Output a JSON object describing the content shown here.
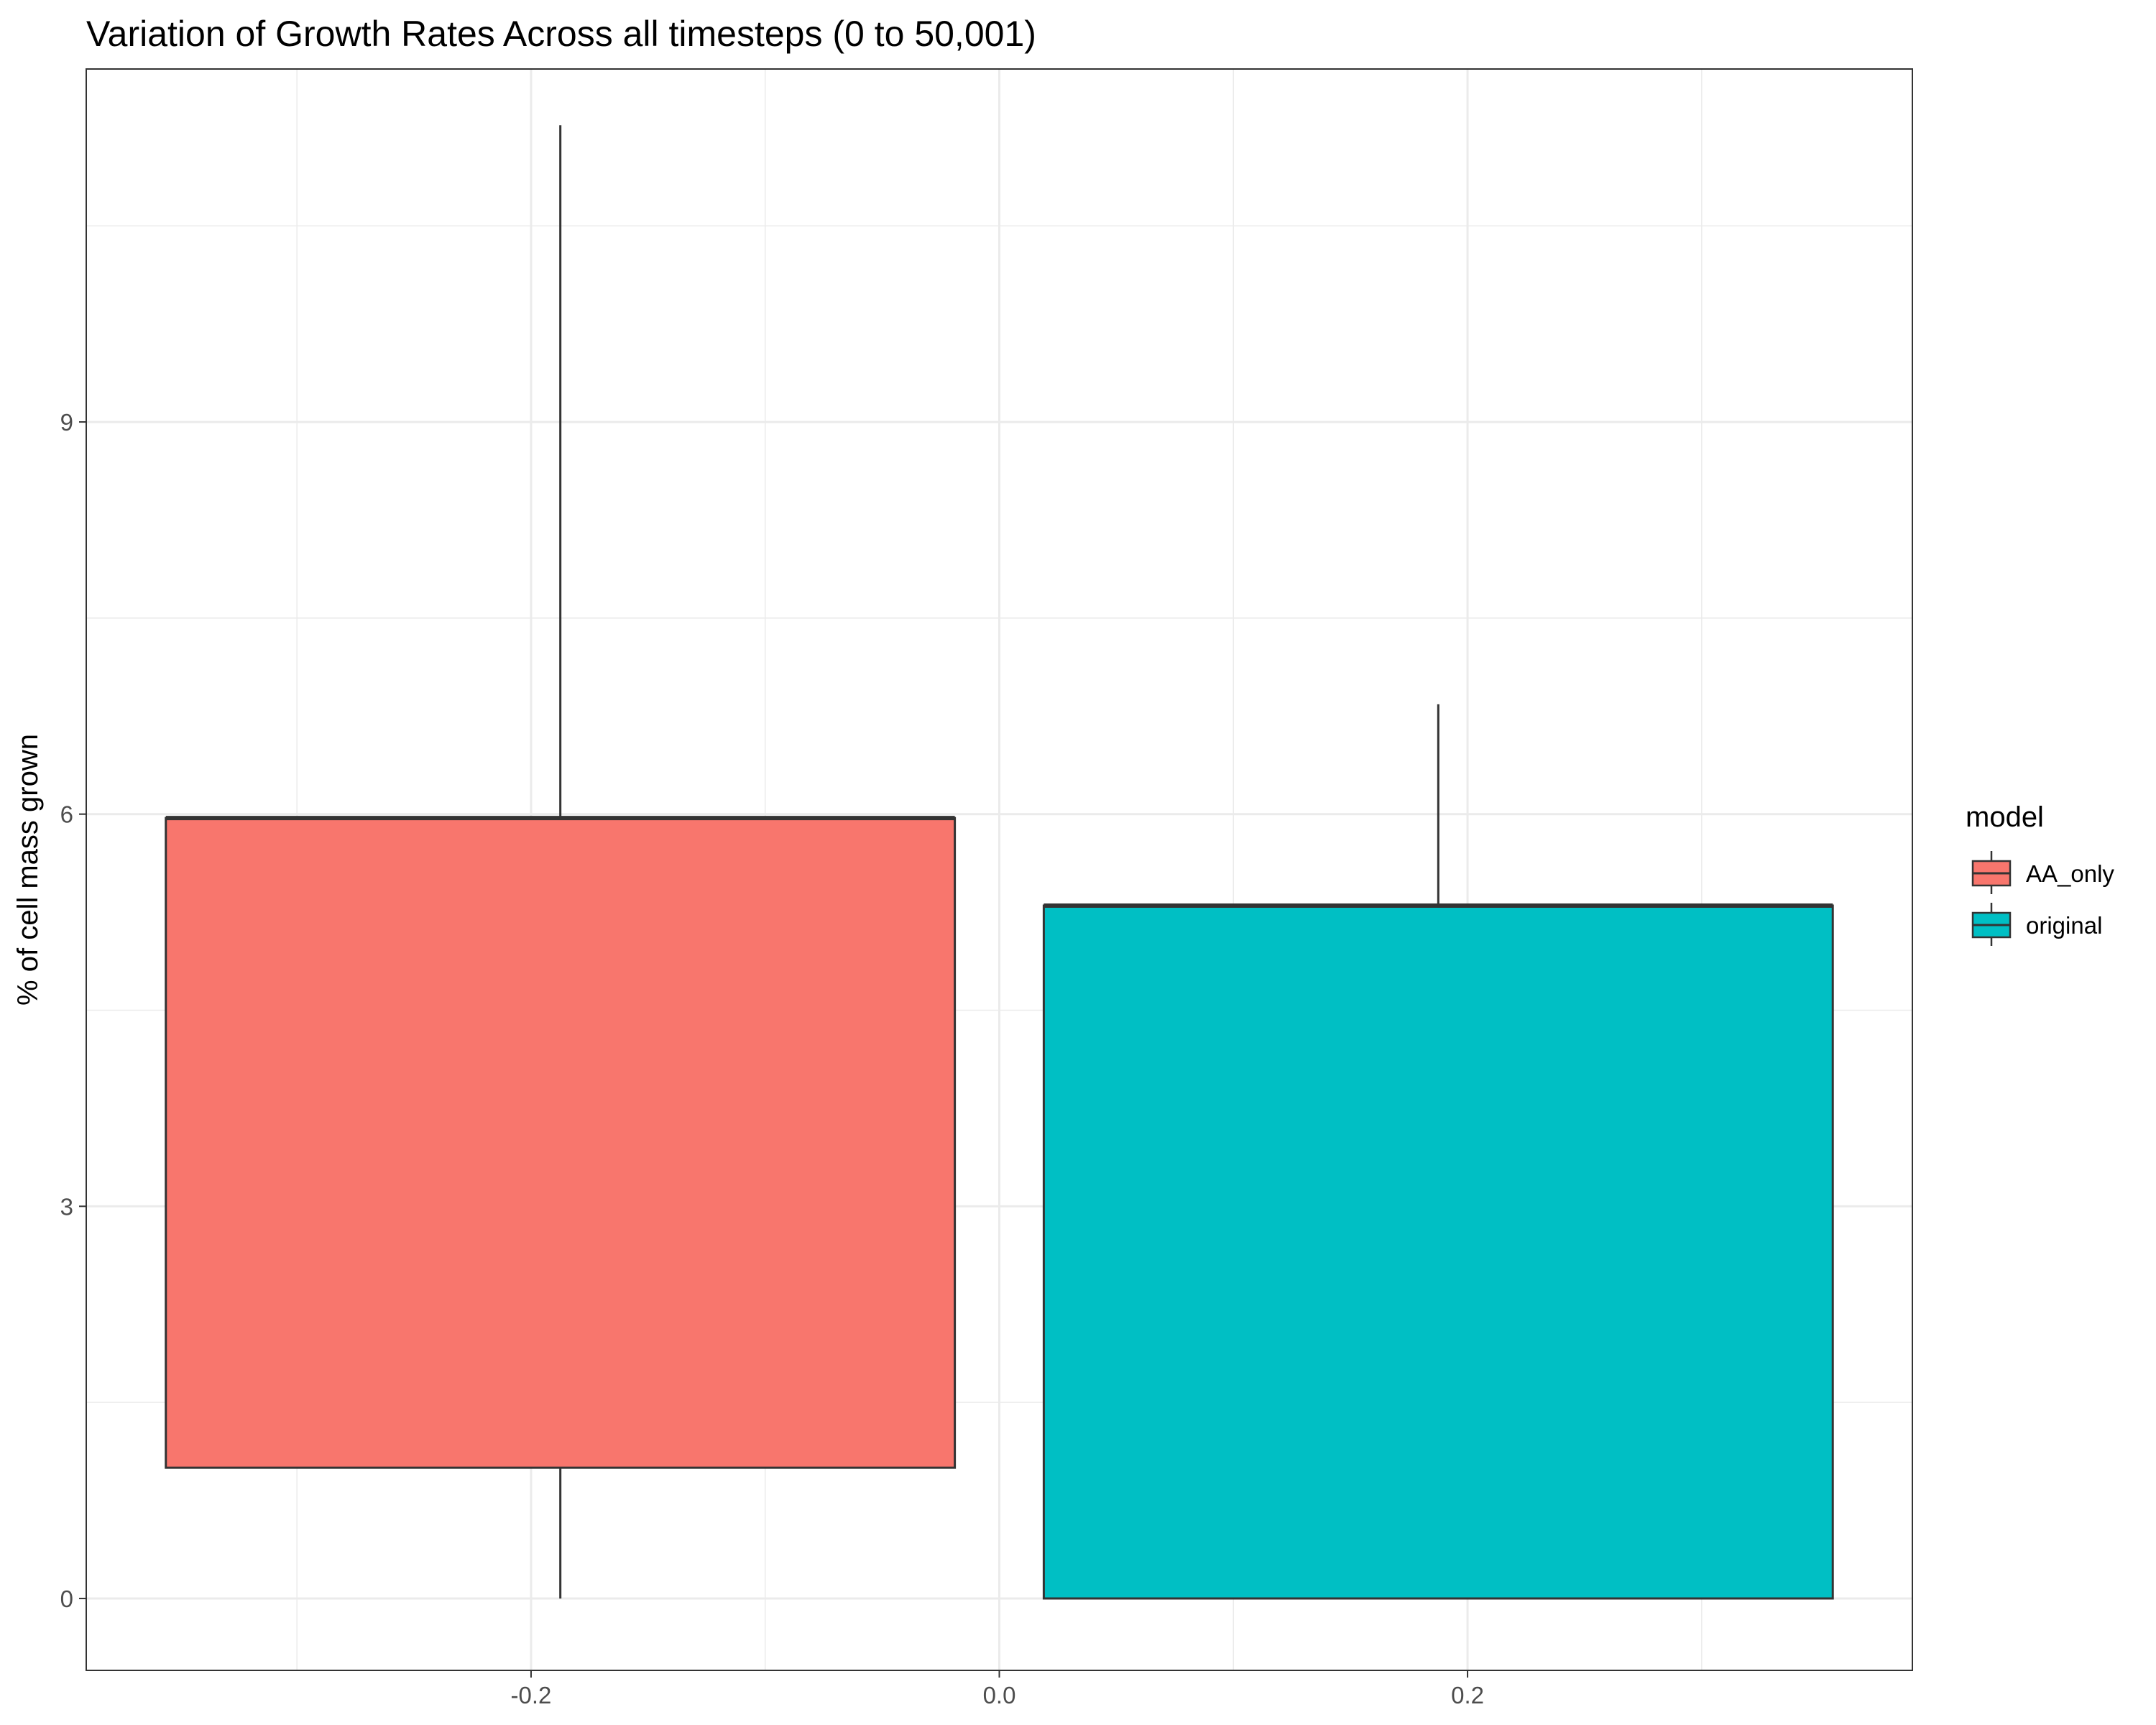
{
  "chart_data": {
    "type": "boxplot",
    "title": "Variation of Growth Rates Across all timesteps (0 to 50,001)",
    "xlabel": "",
    "ylabel": "% of cell mass grown",
    "xlim": [
      -0.39,
      0.39
    ],
    "ylim": [
      -0.55,
      11.7
    ],
    "x_ticks": [
      -0.2,
      0.0,
      0.2
    ],
    "x_tick_labels": [
      "-0.2",
      "0.0",
      "0.2"
    ],
    "x_minor_ticks": [
      -0.3,
      -0.1,
      0.1,
      0.3
    ],
    "y_ticks": [
      0,
      3,
      6,
      9
    ],
    "y_tick_labels": [
      "0",
      "3",
      "6",
      "9"
    ],
    "y_minor_ticks": [
      1.5,
      4.5,
      7.5,
      10.5
    ],
    "grid": true,
    "legend": {
      "title": "model",
      "position": "right",
      "entries": [
        "AA_only",
        "original"
      ]
    },
    "series": [
      {
        "name": "AA_only",
        "color": "#F8766D",
        "x_min": -0.356,
        "x_max": -0.019,
        "whisker_x": -0.1875,
        "lower_whisker": 0.0,
        "q1": 1.0,
        "median": 5.97,
        "q3": 5.97,
        "upper_whisker": 11.27
      },
      {
        "name": "original",
        "color": "#00BFC4",
        "x_min": 0.019,
        "x_max": 0.356,
        "whisker_x": 0.1875,
        "lower_whisker": 0.0,
        "q1": 0.0,
        "median": 5.3,
        "q3": 5.3,
        "upper_whisker": 6.84
      }
    ]
  }
}
